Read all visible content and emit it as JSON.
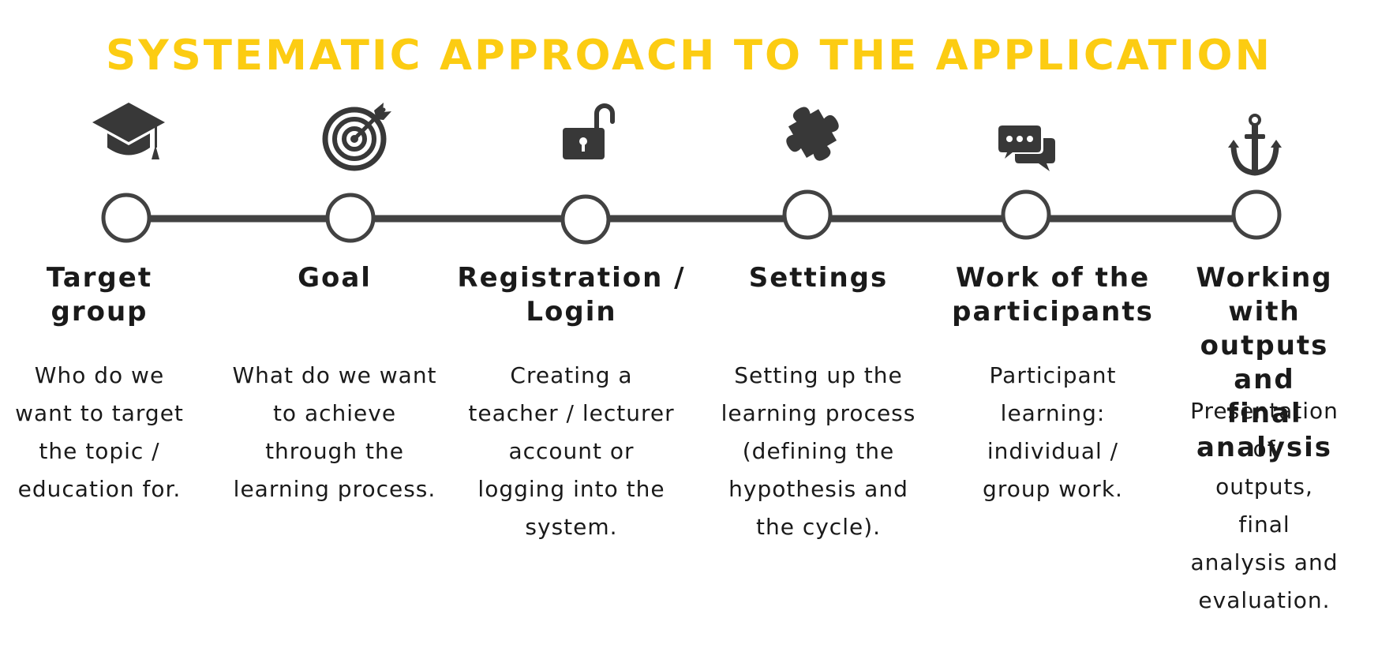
{
  "title": "SYSTEMATIC APPROACH TO THE APPLICATION",
  "colors": {
    "title": "#FCCC12",
    "icon": "#383838",
    "line": "#424242",
    "text": "#1a1a1a"
  },
  "steps": [
    {
      "icon": "graduation-cap-icon",
      "title": "Target\ngroup",
      "description": "Who do we\nwant to target\nthe topic /\neducation for."
    },
    {
      "icon": "target-arrow-icon",
      "title": "Goal",
      "description": "What do we want\nto achieve\nthrough the\nlearning process."
    },
    {
      "icon": "open-padlock-icon",
      "title": "Registration /\nLogin",
      "description": "Creating a\nteacher / lecturer\naccount or\nlogging into the\nsystem."
    },
    {
      "icon": "puzzle-piece-icon",
      "title": "Settings",
      "description": "Setting up the\nlearning process\n(defining the\nhypothesis and\nthe cycle)."
    },
    {
      "icon": "chat-bubbles-icon",
      "title": "Work of the\nparticipants",
      "description": "Participant\nlearning:\nindividual /\ngroup work."
    },
    {
      "icon": "anchor-icon",
      "title": "Working with\noutputs and\nfinal analysis",
      "description": "Presentation of\noutputs, final\nanalysis and\nevaluation."
    }
  ]
}
